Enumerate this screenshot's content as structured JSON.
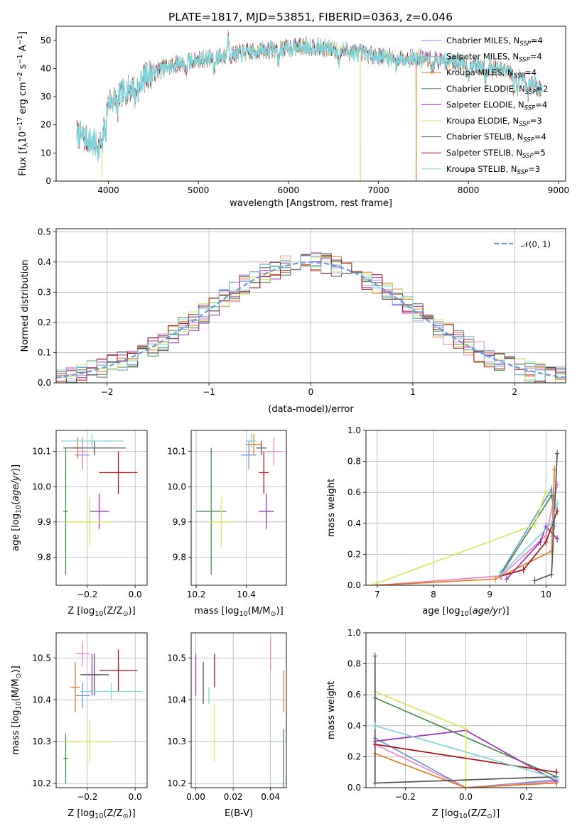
{
  "title": "PLATE=1817, MJD=53851, FIBERID=0363, z=0.046",
  "colors": [
    "#6f95d8",
    "#ec89c4",
    "#e07d27",
    "#4c8a4c",
    "#9b33b2",
    "#d6e85c",
    "#555555",
    "#a8141c",
    "#7ed6dc"
  ],
  "chart_data": [
    {
      "id": "spectrum",
      "type": "line",
      "xlabel": "wavelength [Angstrom, rest frame]",
      "ylabel": "Flux [f$_\\lambda$10$^{-17}$ erg cm$^{-2}$ s$^{-1}$ A$^{-1}$]",
      "ylabel_parts": [
        "Flux [f",
        "λ",
        "10",
        "−17",
        " erg cm",
        "−2",
        " s",
        "−1",
        " A",
        "−1",
        "]"
      ],
      "xlim": [
        3420,
        9080
      ],
      "ylim": [
        0,
        55
      ],
      "xticks": [
        4000,
        5000,
        6000,
        7000,
        8000,
        9000
      ],
      "yticks": [
        0,
        10,
        20,
        30,
        40,
        50
      ],
      "x_range": [
        3650,
        8820
      ],
      "legend_position": "right",
      "legend": [
        {
          "name": "Chabrier MILES, N",
          "sub": "SSP",
          "suffix": "=4"
        },
        {
          "name": "Salpeter MILES, N",
          "sub": "SSP",
          "suffix": "=4"
        },
        {
          "name": "Kroupa MILES, N",
          "sub": "SSP",
          "suffix": "=4"
        },
        {
          "name": "Chabrier ELODIE, N",
          "sub": "SSP",
          "suffix": "=2"
        },
        {
          "name": "Salpeter ELODIE, N",
          "sub": "SSP",
          "suffix": "=4"
        },
        {
          "name": "Kroupa ELODIE, N",
          "sub": "SSP",
          "suffix": "=3"
        },
        {
          "name": "Chabrier STELIB, N",
          "sub": "SSP",
          "suffix": "=4"
        },
        {
          "name": "Salpeter STELIB, N",
          "sub": "SSP",
          "suffix": "=5"
        },
        {
          "name": "Kroupa STELIB, N",
          "sub": "SSP",
          "suffix": "=3"
        }
      ],
      "drops": [
        {
          "x": 3930,
          "series": 5
        },
        {
          "x": 6800,
          "series": 5
        },
        {
          "x": 7420,
          "series": 2
        }
      ],
      "continuum": [
        [
          3650,
          17
        ],
        [
          3800,
          14
        ],
        [
          3900,
          12
        ],
        [
          4000,
          28
        ],
        [
          4150,
          31
        ],
        [
          4300,
          34
        ],
        [
          4400,
          37
        ],
        [
          4600,
          40
        ],
        [
          4800,
          42
        ],
        [
          5000,
          43
        ],
        [
          5300,
          44.5
        ],
        [
          5600,
          46
        ],
        [
          5900,
          47
        ],
        [
          6200,
          48
        ],
        [
          6600,
          46.5
        ],
        [
          6900,
          45
        ],
        [
          7100,
          44
        ],
        [
          7500,
          43.5
        ],
        [
          7800,
          42.5
        ],
        [
          8100,
          41
        ],
        [
          8400,
          39
        ],
        [
          8600,
          37
        ],
        [
          8820,
          32
        ]
      ],
      "features": [
        [
          3933,
          -7
        ],
        [
          3968,
          -6
        ],
        [
          4101,
          -5
        ],
        [
          4300,
          -5
        ],
        [
          4340,
          -4
        ],
        [
          4861,
          -4
        ],
        [
          5175,
          -5
        ],
        [
          5330,
          7
        ],
        [
          5890,
          -5
        ],
        [
          6563,
          -4
        ],
        [
          7200,
          -3
        ],
        [
          7600,
          -4
        ],
        [
          8000,
          -4
        ],
        [
          8190,
          -4
        ],
        [
          8500,
          -5
        ],
        [
          8540,
          -5
        ],
        [
          8660,
          -5
        ]
      ]
    },
    {
      "id": "residuals",
      "type": "histogram",
      "xlabel": "(data-model)/error",
      "ylabel": "Normed distribution",
      "xlim": [
        -2.5,
        2.5
      ],
      "ylim": [
        0,
        0.51
      ],
      "xticks": [
        -2,
        -1,
        0,
        1,
        2
      ],
      "yticks": [
        0.0,
        0.1,
        0.2,
        0.3,
        0.4,
        0.5
      ],
      "bin_width": 0.1,
      "grid": true,
      "legend_position": "top-right",
      "reference": {
        "label_prefix": "𝒩",
        "label_suffix": "(0, 1)",
        "mu": 0,
        "sigma": 1,
        "color": "#6f95d8"
      }
    },
    {
      "id": "age_vs_Z",
      "type": "errorbar",
      "xlabel": "Z [log$_{10}$(Z/Z$_\\odot$)]",
      "xlabel_parts": [
        "Z [log",
        "10",
        "(Z/Z",
        "⊙",
        ")]"
      ],
      "ylabel": "age  [log$_{10}$(age/yr)]",
      "ylabel_parts": [
        "age  [log",
        "10",
        "(",
        "age/yr",
        ")]"
      ],
      "xlim": [
        -0.33,
        0.05
      ],
      "ylim": [
        9.72,
        10.16
      ],
      "xticks": [
        -0.2,
        0.0
      ],
      "yticks": [
        9.8,
        9.9,
        10.0,
        10.1
      ],
      "grid": true,
      "points": [
        {
          "x": -0.22,
          "y": 10.09,
          "xerr": 0.03,
          "yerr": 0.04,
          "c": 0
        },
        {
          "x": -0.22,
          "y": 10.1,
          "xerr": 0.02,
          "yerr": 0.04,
          "c": 1
        },
        {
          "x": -0.24,
          "y": 10.11,
          "xerr": 0.02,
          "yerr": 0.03,
          "c": 2
        },
        {
          "x": -0.29,
          "y": 9.93,
          "xerr": 0.01,
          "yerr": 0.18,
          "c": 3
        },
        {
          "x": -0.15,
          "y": 9.93,
          "xerr": 0.04,
          "yerr": 0.05,
          "c": 4
        },
        {
          "x": -0.19,
          "y": 9.9,
          "xerr": 0.1,
          "yerr": 0.07,
          "c": 5
        },
        {
          "x": -0.17,
          "y": 10.11,
          "xerr": 0.13,
          "yerr": 0.02,
          "c": 6
        },
        {
          "x": -0.07,
          "y": 10.04,
          "xerr": 0.08,
          "yerr": 0.06,
          "c": 7
        },
        {
          "x": -0.18,
          "y": 10.13,
          "xerr": 0.13,
          "yerr": 0.02,
          "c": 8
        }
      ]
    },
    {
      "id": "age_vs_mass",
      "type": "errorbar",
      "xlabel": "mass [log$_{10}$(M/M$_\\odot$)]",
      "xlabel_parts": [
        "mass [log",
        "10",
        "(M/M",
        "⊙",
        ")]"
      ],
      "ylabel": "",
      "xlim": [
        10.18,
        10.56
      ],
      "ylim": [
        9.72,
        10.16
      ],
      "xticks": [
        10.2,
        10.4
      ],
      "yticks": [
        9.8,
        9.9,
        10.0,
        10.1
      ],
      "grid": true,
      "points": [
        {
          "x": 10.41,
          "y": 10.09,
          "xerr": 0.03,
          "yerr": 0.04,
          "c": 0
        },
        {
          "x": 10.51,
          "y": 10.1,
          "xerr": 0.03,
          "yerr": 0.04,
          "c": 1
        },
        {
          "x": 10.43,
          "y": 10.12,
          "xerr": 0.03,
          "yerr": 0.03,
          "c": 2
        },
        {
          "x": 10.26,
          "y": 9.93,
          "xerr": 0.06,
          "yerr": 0.18,
          "c": 3
        },
        {
          "x": 10.48,
          "y": 9.93,
          "xerr": 0.03,
          "yerr": 0.05,
          "c": 4
        },
        {
          "x": 10.3,
          "y": 9.9,
          "xerr": 0.05,
          "yerr": 0.07,
          "c": 5
        },
        {
          "x": 10.46,
          "y": 10.11,
          "xerr": 0.02,
          "yerr": 0.02,
          "c": 6
        },
        {
          "x": 10.47,
          "y": 10.04,
          "xerr": 0.02,
          "yerr": 0.06,
          "c": 7
        },
        {
          "x": 10.42,
          "y": 10.13,
          "xerr": 0.02,
          "yerr": 0.02,
          "c": 8
        }
      ]
    },
    {
      "id": "mass_weight_vs_age",
      "type": "line",
      "xlabel": "age  [log$_{10}$(age/yr)]",
      "xlabel_parts": [
        "age  [log",
        "10",
        "(",
        "age/yr",
        ")]"
      ],
      "ylabel": "mass weight",
      "xlim": [
        6.8,
        10.35
      ],
      "ylim": [
        0,
        1.0
      ],
      "xticks": [
        7,
        8,
        9,
        10
      ],
      "yticks": [
        0.0,
        0.2,
        0.4,
        0.6,
        0.8,
        1.0
      ],
      "grid": true,
      "series": [
        {
          "c": 0,
          "points": [
            [
              9.2,
              0.08
            ],
            [
              10.1,
              0.62
            ],
            [
              10.15,
              0.38
            ]
          ]
        },
        {
          "c": 1,
          "points": [
            [
              7.0,
              0.0
            ],
            [
              9.2,
              0.06
            ],
            [
              10.0,
              0.32
            ],
            [
              10.2,
              0.65
            ]
          ]
        },
        {
          "c": 2,
          "points": [
            [
              7.0,
              0.0
            ],
            [
              9.1,
              0.04
            ],
            [
              10.1,
              0.22
            ],
            [
              10.15,
              0.75
            ]
          ]
        },
        {
          "c": 3,
          "points": [
            [
              9.2,
              0.07
            ],
            [
              10.1,
              0.58
            ]
          ]
        },
        {
          "c": 4,
          "points": [
            [
              9.3,
              0.04
            ],
            [
              9.9,
              0.28
            ],
            [
              10.0,
              0.38
            ],
            [
              10.2,
              0.3
            ]
          ]
        },
        {
          "c": 5,
          "points": [
            [
              6.9,
              0.0
            ],
            [
              9.8,
              0.39
            ],
            [
              10.0,
              0.61
            ]
          ]
        },
        {
          "c": 6,
          "points": [
            [
              9.8,
              0.03
            ],
            [
              10.1,
              0.07
            ],
            [
              10.2,
              0.85
            ]
          ]
        },
        {
          "c": 7,
          "points": [
            [
              9.2,
              0.06
            ],
            [
              9.6,
              0.1
            ],
            [
              10.0,
              0.28
            ],
            [
              10.2,
              0.48
            ]
          ]
        },
        {
          "c": 8,
          "points": [
            [
              9.2,
              0.07
            ],
            [
              10.1,
              0.4
            ],
            [
              10.2,
              0.53
            ]
          ]
        }
      ]
    },
    {
      "id": "mass_vs_Z",
      "type": "errorbar",
      "xlabel": "Z [log$_{10}$(Z/Z$_\\odot$)]",
      "xlabel_parts": [
        "Z [log",
        "10",
        "(Z/Z",
        "⊙",
        ")]"
      ],
      "ylabel": "mass [log$_{10}$(M/M$_\\odot$)]",
      "ylabel_parts": [
        "mass [log",
        "10",
        "(M/M",
        "⊙",
        ")]"
      ],
      "xlim": [
        -0.33,
        0.05
      ],
      "ylim": [
        10.19,
        10.56
      ],
      "xticks": [
        -0.2,
        0.0
      ],
      "yticks": [
        10.2,
        10.3,
        10.4,
        10.5
      ],
      "grid": true,
      "points": [
        {
          "x": -0.22,
          "y": 10.41,
          "xerr": 0.03,
          "yerr": 0.03,
          "c": 0
        },
        {
          "x": -0.22,
          "y": 10.51,
          "xerr": 0.03,
          "yerr": 0.03,
          "c": 1
        },
        {
          "x": -0.25,
          "y": 10.43,
          "xerr": 0.02,
          "yerr": 0.06,
          "c": 2
        },
        {
          "x": -0.29,
          "y": 10.26,
          "xerr": 0.01,
          "yerr": 0.06,
          "c": 3
        },
        {
          "x": -0.18,
          "y": 10.46,
          "xerr": 0.04,
          "yerr": 0.05,
          "c": 4
        },
        {
          "x": -0.19,
          "y": 10.3,
          "xerr": 0.1,
          "yerr": 0.05,
          "c": 5
        },
        {
          "x": -0.17,
          "y": 10.46,
          "xerr": 0.06,
          "yerr": 0.05,
          "c": 6
        },
        {
          "x": -0.07,
          "y": 10.47,
          "xerr": 0.08,
          "yerr": 0.05,
          "c": 7
        },
        {
          "x": -0.1,
          "y": 10.42,
          "xerr": 0.13,
          "yerr": 0.02,
          "c": 8
        }
      ]
    },
    {
      "id": "mass_vs_EBV",
      "type": "errorbar",
      "xlabel": "E(B-V)",
      "ylabel": "",
      "xlim": [
        -0.0025,
        0.0485
      ],
      "ylim": [
        10.19,
        10.56
      ],
      "xticks": [
        0.0,
        0.02,
        0.04
      ],
      "xtick_labels": [
        "0.00",
        "0.02",
        "0.04"
      ],
      "yticks": [
        10.2,
        10.3,
        10.4,
        10.5
      ],
      "grid": true,
      "points": [
        {
          "x": 0.007,
          "y": 10.41,
          "xerr": 0,
          "yerr": 0.02,
          "c": 8
        },
        {
          "x": 0.04,
          "y": 10.51,
          "xerr": 0,
          "yerr": 0.04,
          "c": 1
        },
        {
          "x": 0.047,
          "y": 10.42,
          "xerr": 0,
          "yerr": 0.05,
          "c": 2
        },
        {
          "x": 0.047,
          "y": 10.26,
          "xerr": 0,
          "yerr": 0.07,
          "c": 3
        },
        {
          "x": 0.0,
          "y": 10.46,
          "xerr": 0,
          "yerr": 0.05,
          "c": 4
        },
        {
          "x": 0.01,
          "y": 10.32,
          "xerr": 0,
          "yerr": 0.07,
          "c": 5
        },
        {
          "x": 0.004,
          "y": 10.44,
          "xerr": 0,
          "yerr": 0.05,
          "c": 6
        },
        {
          "x": 0.01,
          "y": 10.47,
          "xerr": 0,
          "yerr": 0.04,
          "c": 7
        }
      ]
    },
    {
      "id": "mass_weight_vs_Z",
      "type": "line",
      "xlabel": "Z [log$_{10}$(Z/Z$_\\odot$)]",
      "xlabel_parts": [
        "Z [log",
        "10",
        "(Z/Z",
        "⊙",
        ")]"
      ],
      "ylabel": "mass weight",
      "xlim": [
        -0.33,
        0.33
      ],
      "ylim": [
        0,
        1.0
      ],
      "xticks": [
        -0.2,
        0.0,
        0.2
      ],
      "yticks": [
        0.0,
        0.2,
        0.4,
        0.6,
        0.8,
        1.0
      ],
      "grid": true,
      "series": [
        {
          "c": 0,
          "points": [
            [
              -0.3,
              0.32
            ],
            [
              0.0,
              0.0
            ],
            [
              0.3,
              0.05
            ]
          ]
        },
        {
          "c": 1,
          "points": [
            [
              -0.3,
              0.28
            ],
            [
              0.0,
              0.0
            ],
            [
              0.3,
              0.04
            ]
          ]
        },
        {
          "c": 2,
          "points": [
            [
              -0.3,
              0.22
            ],
            [
              0.0,
              0.0
            ],
            [
              0.3,
              0.03
            ]
          ]
        },
        {
          "c": 3,
          "points": [
            [
              -0.3,
              0.58
            ],
            [
              0.3,
              0.07
            ]
          ]
        },
        {
          "c": 4,
          "points": [
            [
              -0.3,
              0.3
            ],
            [
              0.0,
              0.37
            ],
            [
              0.3,
              0.04
            ]
          ]
        },
        {
          "c": 5,
          "points": [
            [
              -0.3,
              0.62
            ],
            [
              0.0,
              0.38
            ],
            [
              0.0,
              0.0
            ]
          ]
        },
        {
          "c": 6,
          "points": [
            [
              -0.3,
              0.85
            ],
            [
              -0.3,
              0.03
            ],
            [
              0.3,
              0.07
            ]
          ]
        },
        {
          "c": 7,
          "points": [
            [
              -0.3,
              0.28
            ],
            [
              0.3,
              0.1
            ]
          ]
        },
        {
          "c": 8,
          "points": [
            [
              -0.3,
              0.4
            ],
            [
              0.3,
              0.06
            ]
          ]
        }
      ]
    }
  ]
}
